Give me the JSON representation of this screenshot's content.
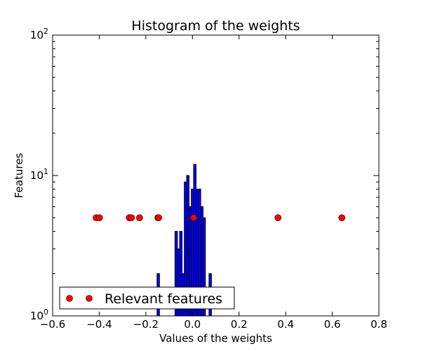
{
  "chart_data": {
    "type": "bar",
    "title": "Histogram of the weights",
    "xlabel": "Values of the weights",
    "ylabel": "Features",
    "xlim": [
      -0.6,
      0.8
    ],
    "ylim": [
      1,
      100
    ],
    "yscale": "log",
    "grid": false,
    "xticks": [
      "−0.6",
      "−0.4",
      "−0.2",
      "0.0",
      "0.2",
      "0.4",
      "0.6",
      "0.8"
    ],
    "xtick_values": [
      -0.6,
      -0.4,
      -0.2,
      0.0,
      0.2,
      0.4,
      0.6,
      0.8
    ],
    "yticks": [
      {
        "base": "10",
        "exp": "0",
        "value": 1
      },
      {
        "base": "10",
        "exp": "1",
        "value": 10
      },
      {
        "base": "10",
        "exp": "2",
        "value": 100
      }
    ],
    "histogram": {
      "color": "#0000ff",
      "bin_width": 0.0105,
      "bins": [
        {
          "left": -0.152,
          "count": 2
        },
        {
          "left": -0.075,
          "count": 4
        },
        {
          "left": -0.065,
          "count": 3
        },
        {
          "left": -0.055,
          "count": 4
        },
        {
          "left": -0.045,
          "count": 2
        },
        {
          "left": -0.035,
          "count": 9
        },
        {
          "left": -0.025,
          "count": 10
        },
        {
          "left": -0.015,
          "count": 6
        },
        {
          "left": -0.005,
          "count": 8
        },
        {
          "left": 0.005,
          "count": 12
        },
        {
          "left": 0.015,
          "count": 8
        },
        {
          "left": 0.025,
          "count": 8
        },
        {
          "left": 0.035,
          "count": 6
        },
        {
          "left": 0.045,
          "count": 5
        },
        {
          "left": 0.071,
          "count": 2
        }
      ]
    },
    "series": [
      {
        "name": "Relevant features",
        "type": "scatter",
        "color": "#ff0000",
        "x": [
          -0.413,
          -0.399,
          -0.271,
          -0.262,
          -0.227,
          -0.148,
          -0.145,
          0.005,
          0.367,
          0.641
        ],
        "y": [
          5,
          5,
          5,
          5,
          5,
          5,
          5,
          5,
          5,
          5
        ]
      }
    ],
    "legend": {
      "placement": "lower-left",
      "label": "Relevant features"
    }
  }
}
